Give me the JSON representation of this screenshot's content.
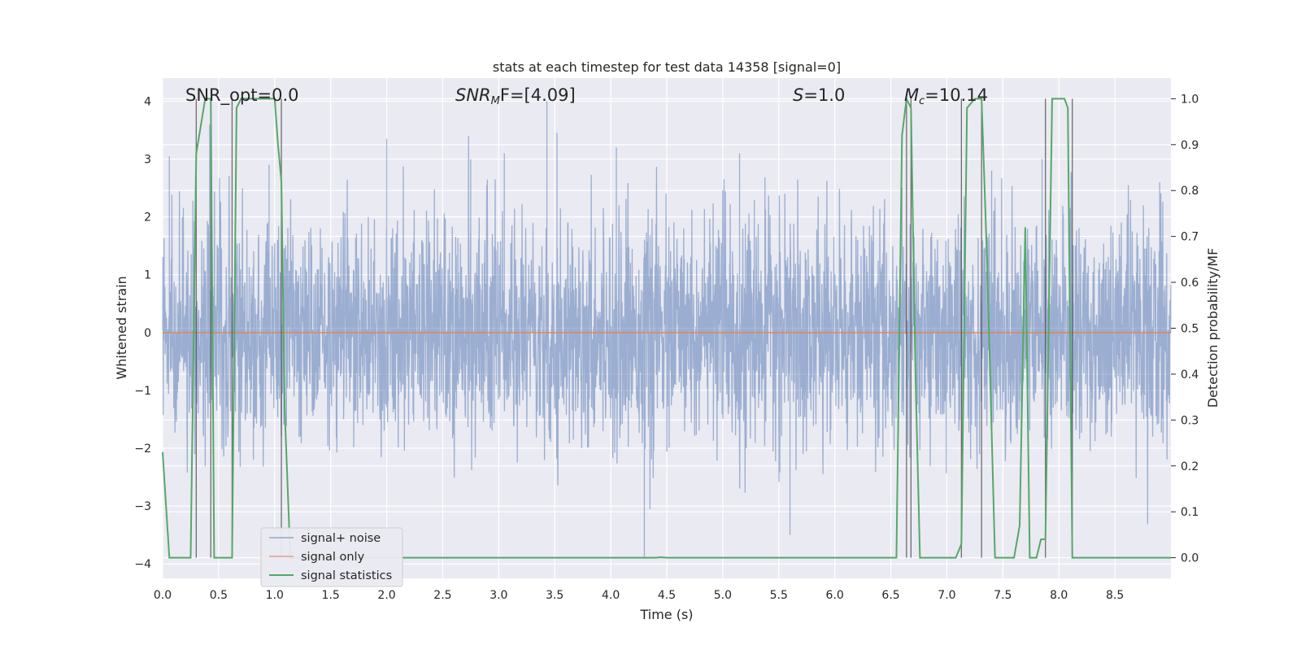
{
  "chart_data": {
    "type": "line",
    "title": "stats at each timestep for test data 14358 [signal=0]",
    "xlabel": "Time (s)",
    "ylabel_left": "Whitened strain",
    "ylabel_right": "Detection probability/MF",
    "xlim": [
      0,
      9.0
    ],
    "ylim_left": [
      -4.25,
      4.4
    ],
    "ylim_right": [
      -0.045,
      1.045
    ],
    "grid": true,
    "x_ticks": [
      "0.0",
      "0.5",
      "1.0",
      "1.5",
      "2.0",
      "2.5",
      "3.0",
      "3.5",
      "4.0",
      "4.5",
      "5.0",
      "5.5",
      "6.0",
      "6.5",
      "7.0",
      "7.5",
      "8.0",
      "8.5"
    ],
    "x_tick_values": [
      0,
      0.5,
      1.0,
      1.5,
      2.0,
      2.5,
      3.0,
      3.5,
      4.0,
      4.5,
      5.0,
      5.5,
      6.0,
      6.5,
      7.0,
      7.5,
      8.0,
      8.5
    ],
    "y_ticks_left": [
      "4",
      "3",
      "2",
      "1",
      "0",
      "−1",
      "−2",
      "−3",
      "−4"
    ],
    "y_tick_values_left": [
      4,
      3,
      2,
      1,
      0,
      -1,
      -2,
      -3,
      -4
    ],
    "y_ticks_right": [
      "1.0",
      "0.9",
      "0.8",
      "0.7",
      "0.6",
      "0.5",
      "0.4",
      "0.3",
      "0.2",
      "0.1",
      "0.0"
    ],
    "y_tick_values_right": [
      1.0,
      0.9,
      0.8,
      0.7,
      0.6,
      0.5,
      0.4,
      0.3,
      0.2,
      0.1,
      0.0
    ],
    "annotations": {
      "snr_opt": "SNR_opt=0.0",
      "snr_mf_main": "SNR",
      "snr_mf_sub": "M",
      "snr_mf_tail": "F=[4.09]",
      "s_main": "S",
      "s_tail": "=1.0",
      "mc_main": "M",
      "mc_sub": "c",
      "mc_tail": "=10.14"
    },
    "legend": {
      "position": "lower-left",
      "entries": [
        {
          "label": "signal+ noise",
          "color": "#4c72b0"
        },
        {
          "label": "signal only",
          "color": "#dd8452"
        },
        {
          "label": "signal statistics",
          "color": "#55a868"
        }
      ]
    },
    "series": [
      {
        "name": "signal+ noise",
        "color": "#4c72b0",
        "axis": "left",
        "description_stats": {
          "approx_mean": 0,
          "approx_std": 0.95,
          "max": 4.0,
          "min": -3.9
        },
        "peaks": [
          [
            0.06,
            3.05
          ],
          [
            0.42,
            3.6
          ],
          [
            0.95,
            2.9
          ],
          [
            2.0,
            3.35
          ],
          [
            2.75,
            3.0
          ],
          [
            3.05,
            3.1
          ],
          [
            3.43,
            4.0
          ],
          [
            3.52,
            3.45
          ],
          [
            4.05,
            3.2
          ],
          [
            4.3,
            -3.9
          ],
          [
            4.35,
            -3.05
          ],
          [
            5.15,
            3.1
          ],
          [
            5.6,
            -3.5
          ],
          [
            6.6,
            2.5
          ],
          [
            7.4,
            2.8
          ],
          [
            7.85,
            3.0
          ],
          [
            8.9,
            2.6
          ]
        ]
      },
      {
        "name": "signal only",
        "color": "#dd8452",
        "axis": "left",
        "constant_value": 0
      },
      {
        "name": "signal statistics",
        "color": "#55a868",
        "axis": "right",
        "x": [
          0.0,
          0.06,
          0.25,
          0.3,
          0.38,
          0.43,
          0.46,
          0.56,
          0.62,
          0.66,
          0.7,
          0.74,
          0.8,
          0.9,
          1.0,
          1.03,
          1.06,
          1.09,
          1.14,
          1.2,
          2.4,
          4.4,
          4.45,
          4.5,
          6.55,
          6.6,
          6.64,
          6.68,
          6.72,
          6.76,
          6.82,
          7.08,
          7.13,
          7.18,
          7.25,
          7.31,
          7.36,
          7.43,
          7.46,
          7.52,
          7.6,
          7.65,
          7.7,
          7.74,
          7.8,
          7.84,
          7.88,
          7.94,
          8.0,
          8.05,
          8.08,
          8.12,
          8.18,
          9.0
        ],
        "y": [
          0.23,
          0.0,
          0.0,
          0.88,
          1.0,
          1.0,
          0.0,
          0.0,
          0.0,
          0.98,
          1.0,
          1.0,
          1.0,
          1.0,
          1.0,
          0.9,
          0.82,
          0.32,
          0.0,
          0.0,
          0.0,
          0.0,
          0.001,
          0.0,
          0.0,
          0.92,
          1.0,
          0.98,
          0.4,
          0.0,
          0.0,
          0.0,
          0.03,
          0.98,
          1.0,
          1.0,
          0.64,
          0.0,
          0.0,
          0.0,
          0.0,
          0.07,
          0.72,
          0.0,
          0.0,
          0.04,
          0.04,
          1.0,
          1.0,
          1.0,
          0.98,
          0.0,
          0.0,
          0.0
        ]
      }
    ],
    "vertical_markers": [
      0.3,
      0.43,
      0.62,
      1.06,
      6.64,
      6.68,
      7.13,
      7.31,
      7.88,
      8.12
    ]
  }
}
